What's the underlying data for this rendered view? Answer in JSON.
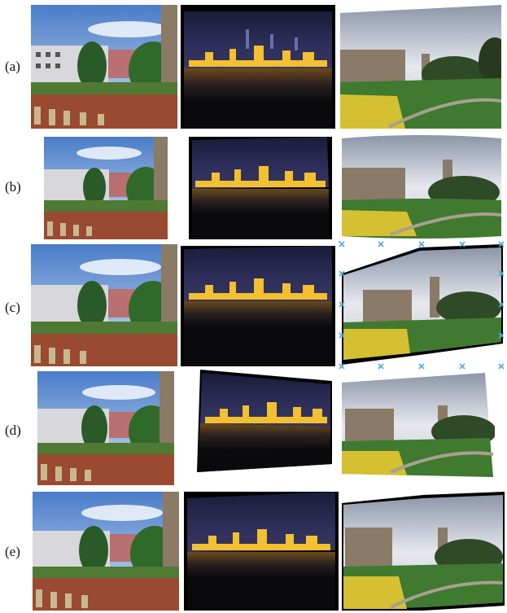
{
  "figure": {
    "rows": [
      {
        "label": "(a)"
      },
      {
        "label": "(b)"
      },
      {
        "label": "(c)"
      },
      {
        "label": "(d)"
      },
      {
        "label": "(e)"
      }
    ],
    "columns": [
      {
        "scene": "campus-building-with-trees"
      },
      {
        "scene": "night-city-skyline-over-river"
      },
      {
        "scene": "castle-garden-with-flowers"
      }
    ],
    "marker_color": "#55aadd"
  }
}
